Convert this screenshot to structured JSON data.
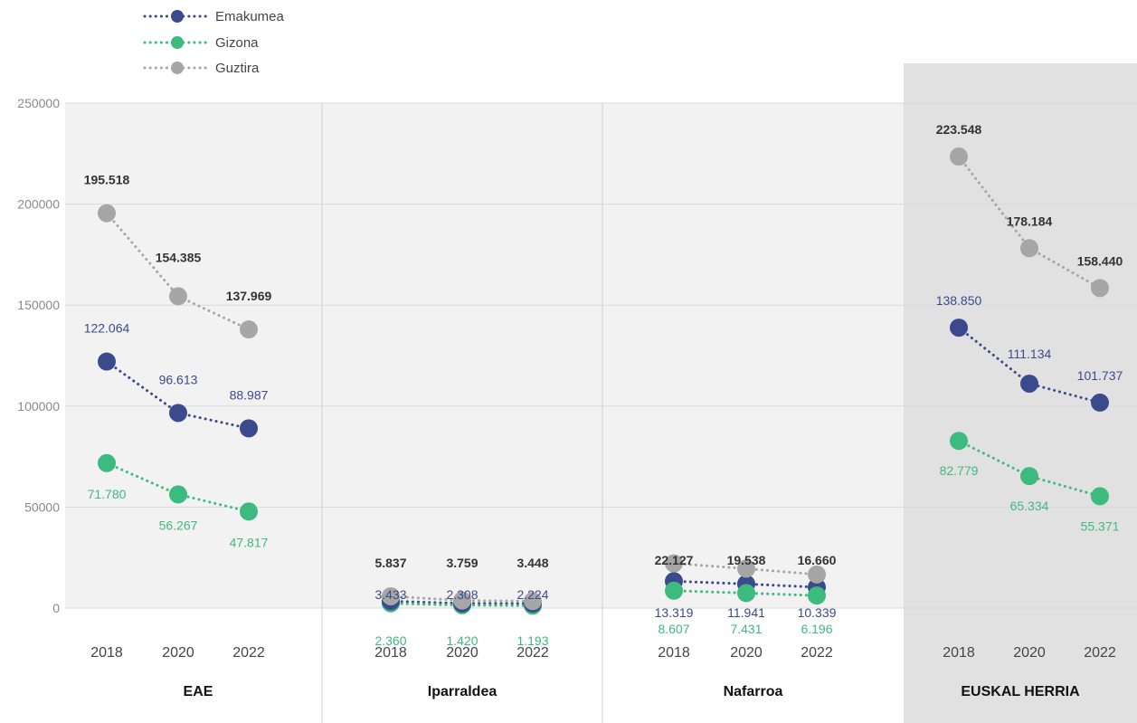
{
  "chart_data": {
    "type": "line",
    "title": "",
    "ylim": [
      0,
      250000
    ],
    "yticks": [
      "0",
      "50000",
      "100000",
      "150000",
      "200000",
      "250000"
    ],
    "grid": true,
    "legend_position": "top-left",
    "colors": {
      "Emakumea": "#3b4a8c",
      "Gizona": "#3dba7e",
      "Guztira": "#a6a6a6",
      "panel_background": "#f2f2f2",
      "highlight_background": "#e2e1e1",
      "grid": "#d9d9d9"
    },
    "series": [
      {
        "name": "Emakumea"
      },
      {
        "name": "Gizona"
      },
      {
        "name": "Guztira"
      }
    ],
    "groups": [
      {
        "name": "EAE",
        "highlight": false,
        "x": [
          "2018",
          "2020",
          "2022"
        ],
        "Emakumea": [
          122064,
          96613,
          88987
        ],
        "Gizona": [
          71780,
          56267,
          47817
        ],
        "Guztira": [
          195518,
          154385,
          137969
        ],
        "labels": {
          "Emakumea": [
            "122.064",
            "96.613",
            "88.987"
          ],
          "Gizona": [
            "71.780",
            "56.267",
            "47.817"
          ],
          "Guztira": [
            "195.518",
            "154.385",
            "137.969"
          ]
        }
      },
      {
        "name": "Iparraldea",
        "highlight": false,
        "x": [
          "2018",
          "2020",
          "2022"
        ],
        "Emakumea": [
          3433,
          2308,
          2224
        ],
        "Gizona": [
          2360,
          1420,
          1193
        ],
        "Guztira": [
          5837,
          3759,
          3448
        ],
        "labels": {
          "Emakumea": [
            "3.433",
            "2.308",
            "2.224"
          ],
          "Gizona": [
            "2.360",
            "1.420",
            "1.193"
          ],
          "Guztira": [
            "5.837",
            "3.759",
            "3.448"
          ]
        }
      },
      {
        "name": "Nafarroa",
        "highlight": false,
        "x": [
          "2018",
          "2020",
          "2022"
        ],
        "Emakumea": [
          13319,
          11941,
          10339
        ],
        "Gizona": [
          8607,
          7431,
          6196
        ],
        "Guztira": [
          22127,
          19538,
          16660
        ],
        "labels": {
          "Emakumea": [
            "13.319",
            "11.941",
            "10.339"
          ],
          "Gizona": [
            "8.607",
            "7.431",
            "6.196"
          ],
          "Guztira": [
            "22.127",
            "19.538",
            "16.660"
          ]
        }
      },
      {
        "name": "EUSKAL HERRIA",
        "highlight": true,
        "x": [
          "2018",
          "2020",
          "2022"
        ],
        "Emakumea": [
          138850,
          111134,
          101737
        ],
        "Gizona": [
          82779,
          65334,
          55371
        ],
        "Guztira": [
          223548,
          178184,
          158440
        ],
        "labels": {
          "Emakumea": [
            "138.850",
            "111.134",
            "101.737"
          ],
          "Gizona": [
            "82.779",
            "65.334",
            "55.371"
          ],
          "Guztira": [
            "223.548",
            "178.184",
            "158.440"
          ]
        }
      }
    ]
  }
}
